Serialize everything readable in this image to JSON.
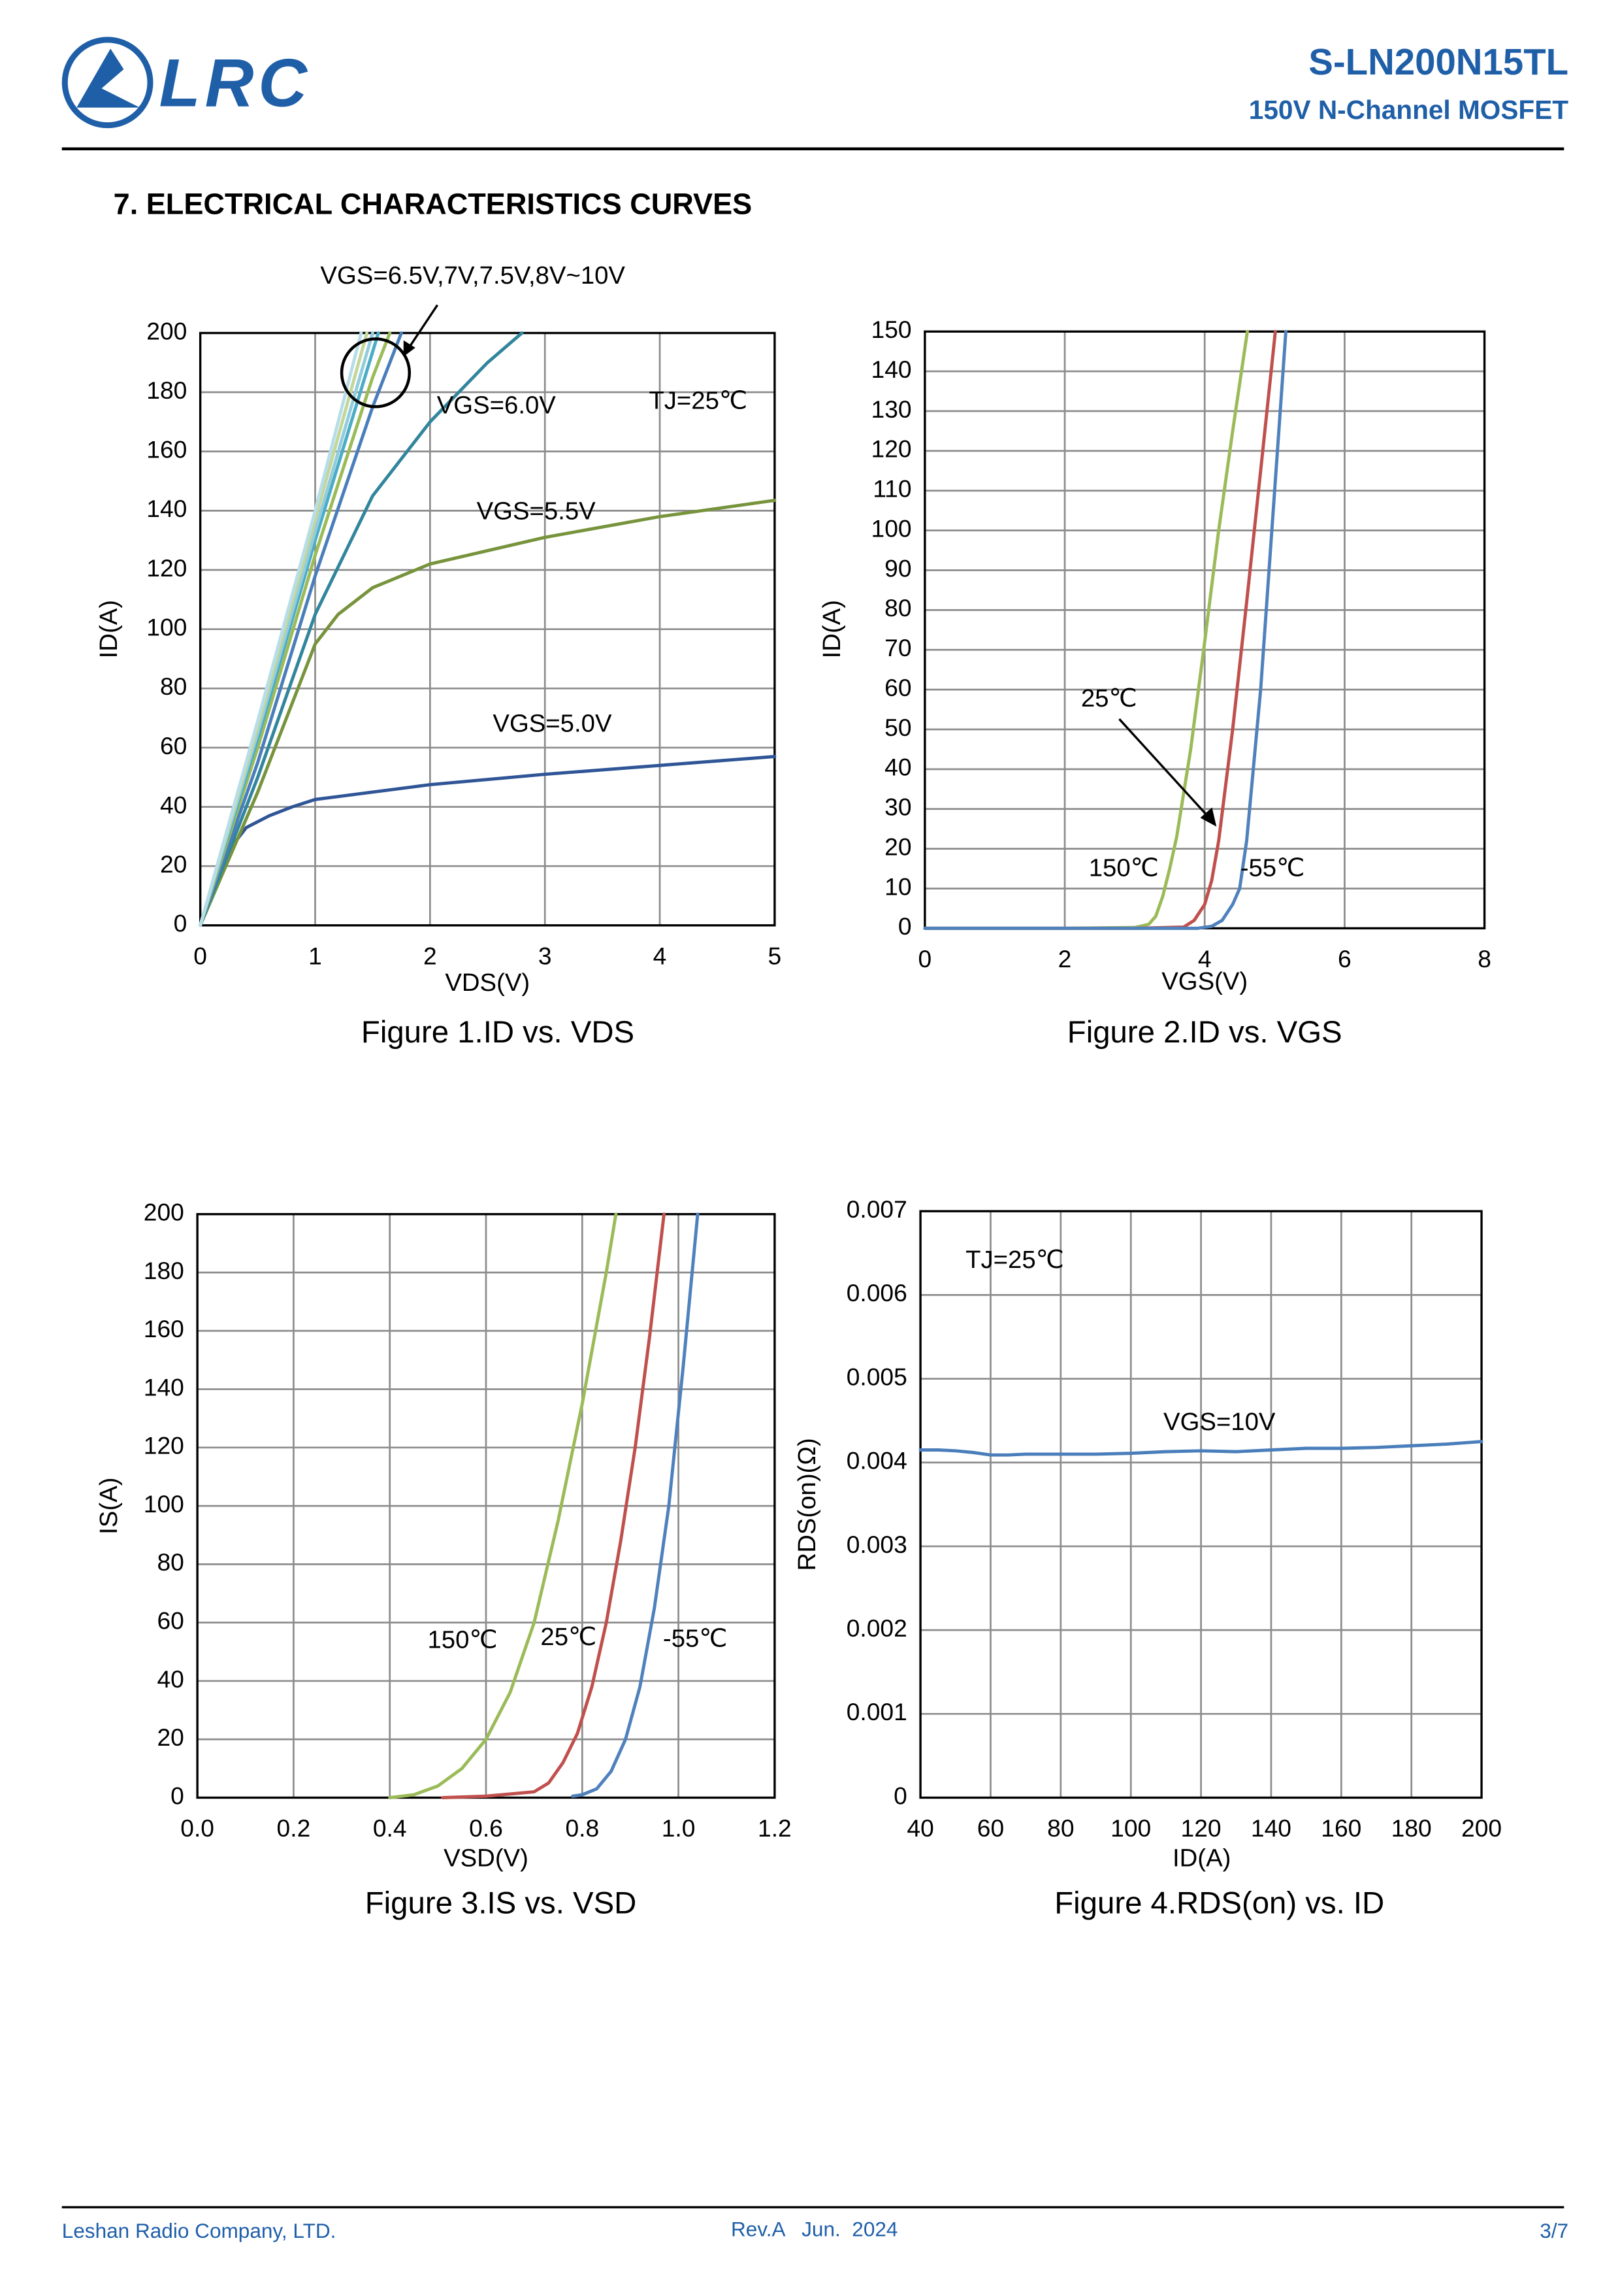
{
  "header": {
    "logo": "LRC",
    "part_number": "S-LN200N15TL",
    "description": "150V N-Channel MOSFET"
  },
  "section_title": "7. ELECTRICAL CHARACTERISTICS CURVES",
  "chart_data": [
    {
      "type": "line",
      "caption": "Figure 1.ID vs. VDS",
      "x_label": "VDS(V)",
      "y_label": "ID(A)",
      "xlim": [
        0,
        5
      ],
      "ylim": [
        0,
        200
      ],
      "xticks": [
        0,
        1,
        2,
        3,
        4,
        5
      ],
      "yticks": [
        0,
        20,
        40,
        60,
        80,
        100,
        120,
        140,
        160,
        180,
        200
      ],
      "grid": true,
      "annotations": [
        "VGS=6.5V,7V,7.5V,8V~10V",
        "TJ=25℃"
      ],
      "series": [
        {
          "name": "VGS=5.0V",
          "color": "#2f5597",
          "x": [
            0,
            0.1,
            0.2,
            0.3,
            0.4,
            0.6,
            0.8,
            1,
            1.5,
            2,
            3,
            4,
            5
          ],
          "values": [
            0,
            10,
            20,
            28,
            33,
            37,
            40,
            42.5,
            45,
            47.5,
            51,
            54,
            57
          ]
        },
        {
          "name": "VGS=5.5V",
          "color": "#77933c",
          "x": [
            0,
            0.5,
            1,
            1.2,
            1.5,
            2,
            3,
            4,
            5
          ],
          "values": [
            0,
            45,
            95,
            105,
            114,
            122,
            131,
            138,
            143.5
          ]
        },
        {
          "name": "VGS=6.0V",
          "color": "#31859c",
          "x": [
            0,
            0.5,
            1,
            1.5,
            2,
            2.5,
            2.8
          ],
          "values": [
            0,
            50,
            105,
            145,
            170,
            190,
            200
          ]
        },
        {
          "color": "#4a7ebb",
          "x": [
            0,
            0.5,
            1,
            1.5,
            1.75
          ],
          "values": [
            0,
            55,
            118,
            175,
            200
          ]
        },
        {
          "color": "#9bbb59",
          "x": [
            0,
            0.5,
            1,
            1.5,
            1.65
          ],
          "values": [
            0,
            60,
            125,
            185,
            200
          ]
        },
        {
          "color": "#4bacc6",
          "x": [
            0,
            0.5,
            1,
            1.55
          ],
          "values": [
            0,
            63,
            130,
            200
          ]
        },
        {
          "color": "#93cddd",
          "x": [
            0,
            0.5,
            1,
            1.5
          ],
          "values": [
            0,
            65,
            133,
            200
          ]
        },
        {
          "color": "#c3d69b",
          "x": [
            0,
            0.5,
            1,
            1.45
          ],
          "values": [
            0,
            67,
            137,
            200
          ]
        },
        {
          "color": "#b7dee8",
          "x": [
            0,
            0.5,
            1,
            1.4
          ],
          "values": [
            0,
            69,
            140,
            200
          ]
        }
      ]
    },
    {
      "type": "line",
      "caption": "Figure 2.ID vs. VGS",
      "x_label": "VGS(V)",
      "y_label": "ID(A)",
      "xlim": [
        0,
        8
      ],
      "ylim": [
        0,
        150
      ],
      "xticks": [
        0,
        2,
        4,
        6,
        8
      ],
      "yticks": [
        0,
        10,
        20,
        30,
        40,
        50,
        60,
        70,
        80,
        90,
        100,
        110,
        120,
        130,
        140,
        150
      ],
      "grid": true,
      "series": [
        {
          "name": "150℃",
          "color": "#9bbb59",
          "x": [
            0,
            2,
            3,
            3.2,
            3.3,
            3.4,
            3.5,
            3.6,
            3.8,
            4,
            4.2,
            4.4,
            4.61
          ],
          "values": [
            0,
            0,
            0.2,
            1,
            3,
            8,
            15,
            23,
            45,
            72,
            100,
            125,
            150
          ]
        },
        {
          "name": "25℃",
          "color": "#c0504d",
          "x": [
            0,
            3,
            3.7,
            3.85,
            4,
            4.1,
            4.2,
            4.4,
            4.6,
            4.8,
            5.01
          ],
          "values": [
            0,
            0,
            0.3,
            2,
            6,
            12,
            22,
            50,
            82,
            115,
            150
          ]
        },
        {
          "name": "-55℃",
          "color": "#4f81bd",
          "x": [
            0,
            3.9,
            4.1,
            4.25,
            4.4,
            4.5,
            4.6,
            4.8,
            5,
            5.16
          ],
          "values": [
            0,
            0,
            0.5,
            2,
            6,
            10,
            22,
            60,
            110,
            150
          ]
        }
      ]
    },
    {
      "type": "line",
      "caption": "Figure 3.IS vs. VSD",
      "x_label": "VSD(V)",
      "y_label": "IS(A)",
      "xlim": [
        0,
        1.2
      ],
      "ylim": [
        0,
        200
      ],
      "xticks": [
        {
          "value": 0,
          "label": "0.0"
        },
        0.2,
        0.4,
        0.6,
        0.8,
        {
          "value": 1,
          "label": "1.0"
        },
        1.2
      ],
      "yticks": [
        0,
        20,
        40,
        60,
        80,
        100,
        120,
        140,
        160,
        180,
        200
      ],
      "grid": true,
      "series": [
        {
          "name": "150℃",
          "color": "#9bbb59",
          "x": [
            0.4,
            0.45,
            0.5,
            0.55,
            0.6,
            0.65,
            0.7,
            0.75,
            0.8,
            0.85,
            0.87
          ],
          "values": [
            0,
            1,
            4,
            10,
            20,
            36,
            60,
            95,
            135,
            180,
            200
          ]
        },
        {
          "name": "25℃",
          "color": "#c0504d",
          "x": [
            0.51,
            0.6,
            0.7,
            0.73,
            0.76,
            0.79,
            0.82,
            0.85,
            0.88,
            0.91,
            0.94,
            0.97
          ],
          "values": [
            0,
            0.5,
            2,
            5,
            12,
            22,
            38,
            60,
            88,
            120,
            158,
            200
          ]
        },
        {
          "name": "-55℃",
          "color": "#4f81bd",
          "x": [
            0.78,
            0.8,
            0.83,
            0.86,
            0.89,
            0.92,
            0.95,
            0.98,
            1.01,
            1.04
          ],
          "values": [
            0.5,
            1,
            3,
            9,
            20,
            38,
            65,
            100,
            148,
            200
          ]
        }
      ]
    },
    {
      "type": "line",
      "caption": "Figure 4.RDS(on) vs. ID",
      "x_label": "ID(A)",
      "y_label": "RDS(on)(Ω)",
      "xlim": [
        40,
        200
      ],
      "ylim": [
        0,
        0.007
      ],
      "xticks": [
        40,
        60,
        80,
        100,
        120,
        140,
        160,
        180,
        200
      ],
      "yticks": [
        0,
        0.001,
        0.002,
        0.003,
        0.004,
        0.005,
        0.006,
        0.007
      ],
      "grid": true,
      "annotations": [
        "TJ=25℃"
      ],
      "series": [
        {
          "name": "VGS=10V",
          "color": "#4a7ebb",
          "x": [
            40,
            45,
            50,
            55,
            60,
            65,
            70,
            80,
            90,
            100,
            110,
            120,
            130,
            140,
            150,
            160,
            170,
            180,
            190,
            200
          ],
          "values": [
            0.00415,
            0.00415,
            0.00414,
            0.00412,
            0.00409,
            0.00409,
            0.0041,
            0.0041,
            0.0041,
            0.00411,
            0.00413,
            0.00414,
            0.00413,
            0.00415,
            0.00417,
            0.00417,
            0.00418,
            0.0042,
            0.00422,
            0.00425
          ]
        }
      ]
    }
  ],
  "footer": {
    "company": "Leshan Radio Company, LTD.",
    "revision": "Rev.A   Jun.  2024",
    "page": "3/7"
  }
}
